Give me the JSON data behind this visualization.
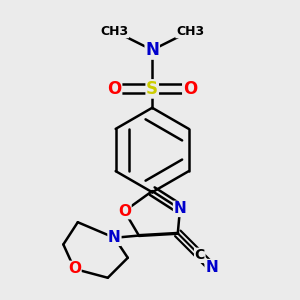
{
  "bg_color": "#ebebeb",
  "bond_color": "#000000",
  "bond_width": 1.8,
  "colors": {
    "C": "#000000",
    "N": "#0000cc",
    "O": "#ff0000",
    "S": "#cccc00"
  },
  "methyl_label": "CH3",
  "cn_label_c": "C",
  "cn_label_n": "N"
}
